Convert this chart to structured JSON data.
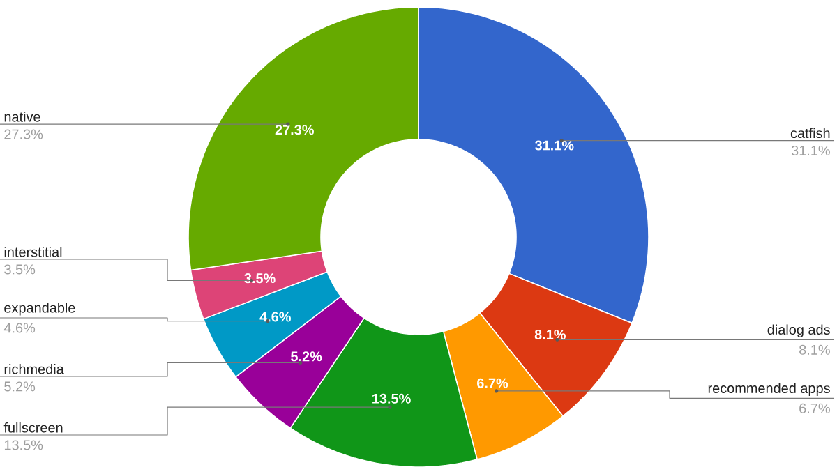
{
  "chart_data": {
    "type": "donut",
    "categories": [
      "catfish",
      "dialog ads",
      "recommended apps",
      "fullscreen",
      "richmedia",
      "expandable",
      "interstitial",
      "native"
    ],
    "values": [
      31.1,
      8.1,
      6.7,
      13.5,
      5.2,
      4.6,
      3.5,
      27.3
    ],
    "colors": [
      "#3366cc",
      "#dc3912",
      "#ff9900",
      "#109618",
      "#990099",
      "#0099c6",
      "#dd4477",
      "#66aa00"
    ],
    "value_labels": [
      "31.1%",
      "8.1%",
      "6.7%",
      "13.5%",
      "5.2%",
      "4.6%",
      "3.5%",
      "27.3%"
    ]
  }
}
